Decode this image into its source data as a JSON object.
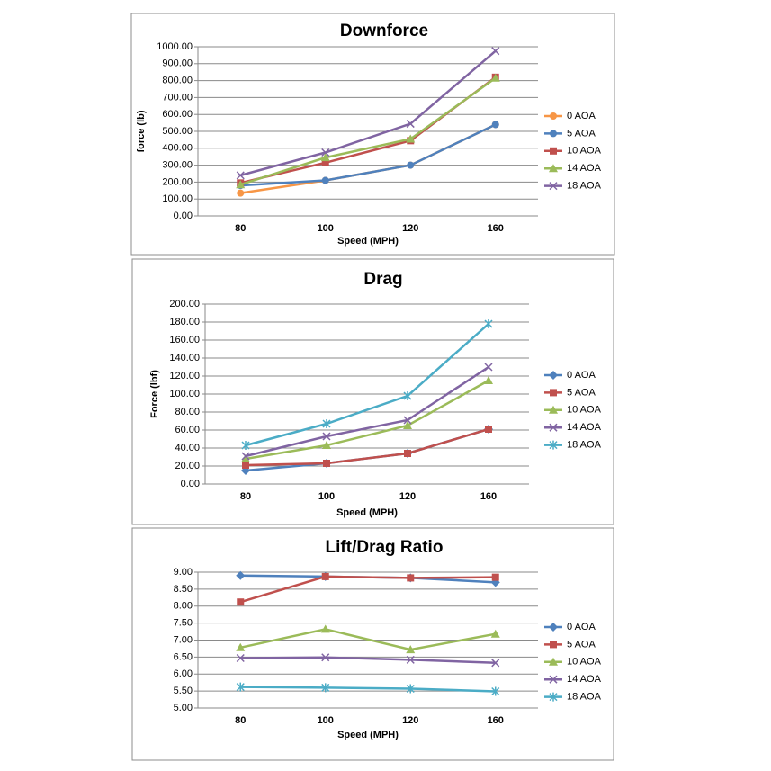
{
  "chart_data": [
    {
      "type": "line",
      "title": "Downforce",
      "x_label": "Speed (MPH)",
      "y_label": "force (lb)",
      "categories": [
        "80",
        "100",
        "120",
        "160"
      ],
      "ylim": [
        0,
        1000
      ],
      "yticks": [
        {
          "value": 0,
          "label": "0.00"
        },
        {
          "value": 100,
          "label": "100.00"
        },
        {
          "value": 200,
          "label": "200.00"
        },
        {
          "value": 300,
          "label": "300.00"
        },
        {
          "value": 400,
          "label": "400.00"
        },
        {
          "value": 500,
          "label": "500.00"
        },
        {
          "value": 600,
          "label": "600.00"
        },
        {
          "value": 700,
          "label": "700.00"
        },
        {
          "value": 800,
          "label": "800.00"
        },
        {
          "value": 900,
          "label": "900.00"
        },
        {
          "value": 1000,
          "label": "1000.00"
        }
      ],
      "grid": true,
      "legend": "right",
      "series": [
        {
          "name": "0 AOA",
          "color": "#f79646",
          "marker": "circle",
          "values": [
            135,
            210,
            300,
            540
          ]
        },
        {
          "name": "5 AOA",
          "color": "#4f81bd",
          "marker": "circle",
          "values": [
            180,
            210,
            300,
            540
          ]
        },
        {
          "name": "10 AOA",
          "color": "#c0504d",
          "marker": "square",
          "values": [
            195,
            315,
            445,
            820
          ]
        },
        {
          "name": "14 AOA",
          "color": "#9bbb59",
          "marker": "triangle",
          "values": [
            185,
            345,
            455,
            815
          ]
        },
        {
          "name": "18 AOA",
          "color": "#8064a2",
          "marker": "x",
          "values": [
            240,
            375,
            545,
            975
          ]
        }
      ]
    },
    {
      "type": "line",
      "title": "Drag",
      "x_label": "Speed (MPH)",
      "y_label": "Force (lbf)",
      "categories": [
        "80",
        "100",
        "120",
        "160"
      ],
      "ylim": [
        0,
        200
      ],
      "yticks": [
        {
          "value": 0,
          "label": "0.00"
        },
        {
          "value": 20,
          "label": "20.00"
        },
        {
          "value": 40,
          "label": "40.00"
        },
        {
          "value": 60,
          "label": "60.00"
        },
        {
          "value": 80,
          "label": "80.00"
        },
        {
          "value": 100,
          "label": "100.00"
        },
        {
          "value": 120,
          "label": "120.00"
        },
        {
          "value": 140,
          "label": "140.00"
        },
        {
          "value": 160,
          "label": "160.00"
        },
        {
          "value": 180,
          "label": "180.00"
        },
        {
          "value": 200,
          "label": "200.00"
        }
      ],
      "grid": true,
      "legend": "right",
      "series": [
        {
          "name": "0 AOA",
          "color": "#4f81bd",
          "marker": "diamond",
          "values": [
            15,
            23,
            34,
            61
          ]
        },
        {
          "name": "5 AOA",
          "color": "#c0504d",
          "marker": "square",
          "values": [
            21,
            23,
            34,
            61
          ]
        },
        {
          "name": "10 AOA",
          "color": "#9bbb59",
          "marker": "triangle",
          "values": [
            28,
            43,
            65,
            115
          ]
        },
        {
          "name": "14 AOA",
          "color": "#8064a2",
          "marker": "x",
          "values": [
            31,
            53,
            71,
            130
          ]
        },
        {
          "name": "18 AOA",
          "color": "#4bacc6",
          "marker": "star",
          "values": [
            43,
            67,
            98,
            178
          ]
        }
      ]
    },
    {
      "type": "line",
      "title": "Lift/Drag Ratio",
      "x_label": "Speed (MPH)",
      "categories": [
        "80",
        "100",
        "120",
        "160"
      ],
      "ylim": [
        5,
        9
      ],
      "yticks": [
        {
          "value": 5,
          "label": "5.00"
        },
        {
          "value": 5.5,
          "label": "5.50"
        },
        {
          "value": 6,
          "label": "6.00"
        },
        {
          "value": 6.5,
          "label": "6.50"
        },
        {
          "value": 7,
          "label": "7.00"
        },
        {
          "value": 7.5,
          "label": "7.50"
        },
        {
          "value": 8,
          "label": "8.00"
        },
        {
          "value": 8.5,
          "label": "8.50"
        },
        {
          "value": 9,
          "label": "9.00"
        }
      ],
      "grid": true,
      "legend": "right",
      "series": [
        {
          "name": "0 AOA",
          "color": "#4f81bd",
          "marker": "diamond",
          "values": [
            8.9,
            8.87,
            8.83,
            8.7
          ]
        },
        {
          "name": "5 AOA",
          "color": "#c0504d",
          "marker": "square",
          "values": [
            8.12,
            8.87,
            8.83,
            8.85
          ]
        },
        {
          "name": "10 AOA",
          "color": "#9bbb59",
          "marker": "triangle",
          "values": [
            6.78,
            7.32,
            6.72,
            7.18
          ]
        },
        {
          "name": "14 AOA",
          "color": "#8064a2",
          "marker": "x",
          "values": [
            6.47,
            6.49,
            6.42,
            6.33
          ]
        },
        {
          "name": "18 AOA",
          "color": "#4bacc6",
          "marker": "star",
          "values": [
            5.62,
            5.6,
            5.57,
            5.49
          ]
        }
      ]
    }
  ]
}
